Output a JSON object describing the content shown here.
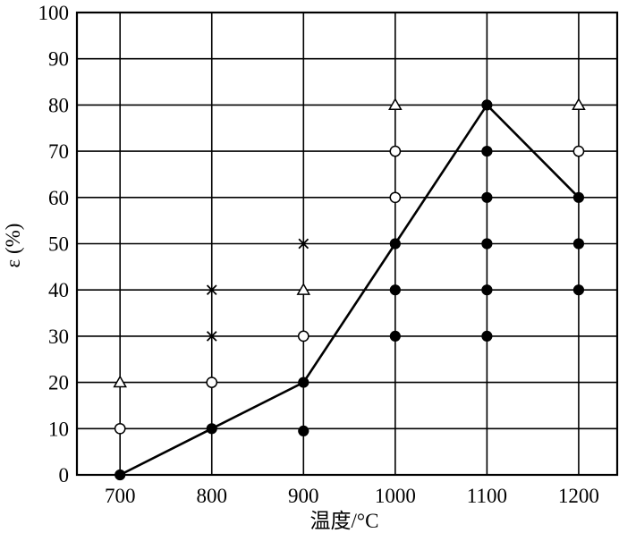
{
  "chart_data": {
    "type": "scatter",
    "xlabel": "温度/°C",
    "ylabel": "ε (%)",
    "x_ticks": [
      700,
      800,
      900,
      1000,
      1100,
      1200
    ],
    "y_ticks": [
      0,
      10,
      20,
      30,
      40,
      50,
      60,
      70,
      80,
      90,
      100
    ],
    "xlim": [
      653,
      1242
    ],
    "ylim": [
      0,
      100
    ],
    "grid": true,
    "series": [
      {
        "marker": "filled-circle",
        "points": [
          [
            700,
            0
          ],
          [
            800,
            10
          ],
          [
            900,
            9.5
          ],
          [
            900,
            20
          ],
          [
            1000,
            30
          ],
          [
            1000,
            40
          ],
          [
            1000,
            50
          ],
          [
            1100,
            30
          ],
          [
            1100,
            40
          ],
          [
            1100,
            50
          ],
          [
            1100,
            60
          ],
          [
            1100,
            70
          ],
          [
            1100,
            80
          ],
          [
            1200,
            40
          ],
          [
            1200,
            50
          ],
          [
            1200,
            60
          ]
        ]
      },
      {
        "marker": "open-circle",
        "points": [
          [
            700,
            10
          ],
          [
            800,
            20
          ],
          [
            900,
            30
          ],
          [
            1000,
            60
          ],
          [
            1000,
            70
          ],
          [
            1200,
            70
          ]
        ]
      },
      {
        "marker": "cross",
        "points": [
          [
            800,
            30
          ],
          [
            800,
            40
          ],
          [
            900,
            50
          ]
        ]
      },
      {
        "marker": "open-triangle",
        "points": [
          [
            700,
            20
          ],
          [
            900,
            40
          ],
          [
            1000,
            80
          ],
          [
            1200,
            80
          ]
        ]
      },
      {
        "marker": "line",
        "points": [
          [
            700,
            0
          ],
          [
            800,
            10
          ],
          [
            900,
            20
          ],
          [
            1000,
            50
          ],
          [
            1100,
            80
          ],
          [
            1200,
            60
          ]
        ]
      }
    ]
  }
}
